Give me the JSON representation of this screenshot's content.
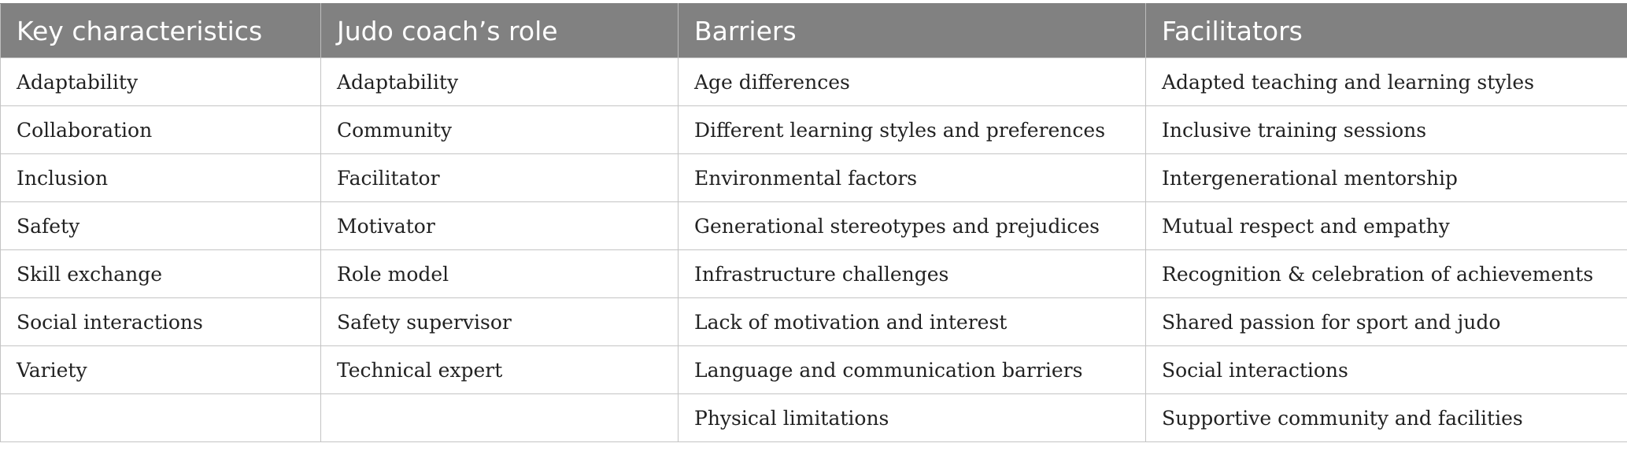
{
  "table": {
    "headers": [
      "Key characteristics",
      "Judo coach’s role",
      "Barriers",
      "Facilitators"
    ],
    "rows": [
      [
        "Adaptability",
        "Adaptability",
        "Age differences",
        "Adapted teaching and learning styles"
      ],
      [
        "Collaboration",
        "Community",
        "Different learning styles and preferences",
        "Inclusive training sessions"
      ],
      [
        "Inclusion",
        "Facilitator",
        "Environmental factors",
        "Intergenerational mentorship"
      ],
      [
        "Safety",
        "Motivator",
        "Generational stereotypes and prejudices",
        "Mutual respect and empathy"
      ],
      [
        "Skill exchange",
        "Role model",
        "Infrastructure challenges",
        "Recognition & celebration of achievements"
      ],
      [
        "Social interactions",
        "Safety supervisor",
        "Lack of motivation and interest",
        "Shared passion for sport and judo"
      ],
      [
        "Variety",
        "Technical expert",
        "Language and communication barriers",
        "Social interactions"
      ],
      [
        "",
        "",
        "Physical limitations",
        "Supportive community and facilities"
      ]
    ]
  }
}
